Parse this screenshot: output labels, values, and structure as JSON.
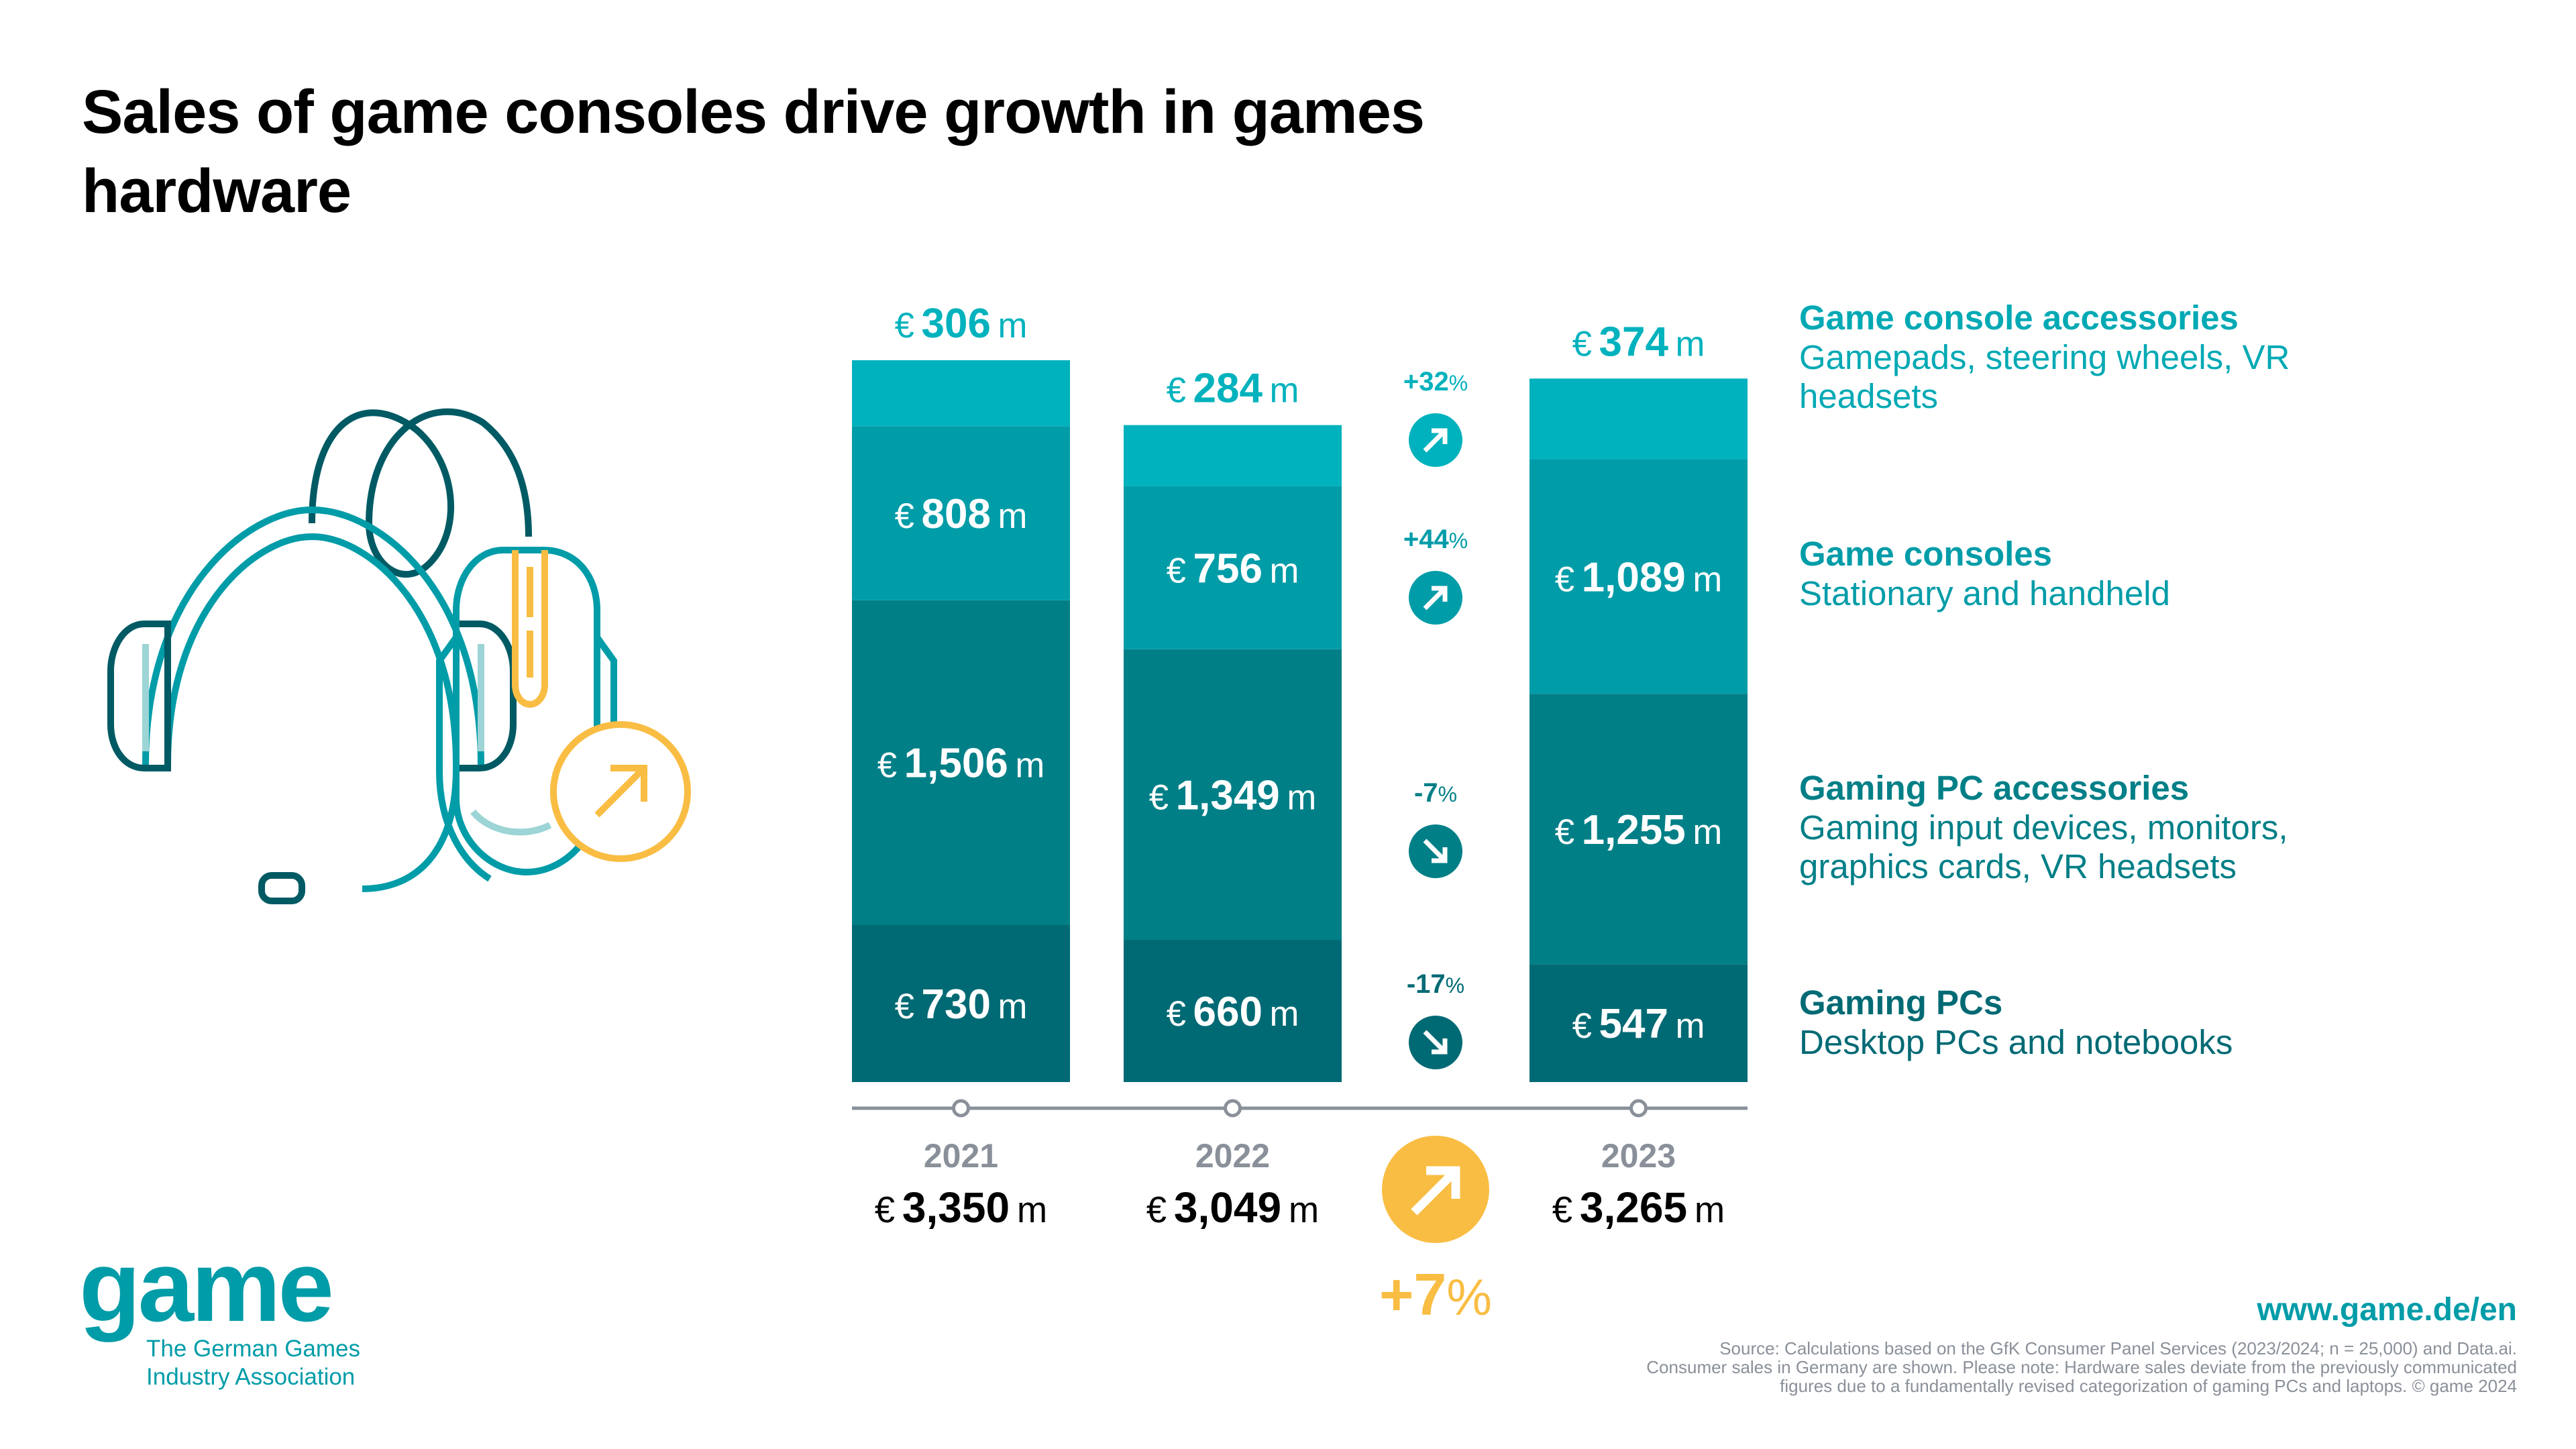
{
  "title": "Sales of game consoles drive growth in games hardware",
  "colors": {
    "console_accessories": "#00b2bd",
    "game_consoles": "#009ca8",
    "pc_accessories": "#007f87",
    "gaming_pcs": "#006a74",
    "highlight": "#f9bd43",
    "axis": "#8a9099"
  },
  "legend": [
    {
      "title": "Game console accessories",
      "desc": "Gamepads, steering wheels, VR headsets"
    },
    {
      "title": "Game consoles",
      "desc": "Stationary and handheld"
    },
    {
      "title": "Gaming PC accessories",
      "desc": "Gaming input devices, monitors, graphics cards, VR headsets"
    },
    {
      "title": "Gaming PCs",
      "desc": "Desktop PCs and notebooks"
    }
  ],
  "chart_data": {
    "type": "bar",
    "stacked": true,
    "title": "Sales of game consoles drive growth in games hardware",
    "unit": "€ m",
    "categories": [
      "2021",
      "2022",
      "2023"
    ],
    "series": [
      {
        "name": "Gaming PCs",
        "values": [
          730,
          660,
          547
        ]
      },
      {
        "name": "Gaming PC accessories",
        "values": [
          1506,
          1349,
          1255
        ]
      },
      {
        "name": "Game consoles",
        "values": [
          808,
          756,
          1089
        ]
      },
      {
        "name": "Game console accessories",
        "values": [
          306,
          284,
          374
        ]
      }
    ],
    "totals": [
      3350,
      3049,
      3265
    ],
    "changes_2022_2023": [
      {
        "series": "Game console accessories",
        "value": "+32",
        "direction": "up"
      },
      {
        "series": "Game consoles",
        "value": "+44",
        "direction": "up"
      },
      {
        "series": "Gaming PC accessories",
        "value": "-7",
        "direction": "down"
      },
      {
        "series": "Gaming PCs",
        "value": "-17",
        "direction": "down"
      }
    ],
    "total_change": {
      "value": "+7",
      "direction": "up"
    },
    "currency_symbol": "€",
    "unit_suffix": "m",
    "percent_symbol": "%",
    "ylim": [
      0,
      3400
    ],
    "grid": false
  },
  "logo": {
    "word": "game",
    "subtitle_line1": "The German Games",
    "subtitle_line2": "Industry Association"
  },
  "website": "www.game.de/en",
  "source_lines": [
    "Source: Calculations based on the GfK Consumer Panel Services (2023/2024; n = 25,000) and Data.ai.",
    "Consumer sales in Germany are shown. Please note: Hardware sales deviate from the previously communicated",
    "figures due to a fundamentally revised categorization of gaming PCs and laptops. © game 2024"
  ]
}
